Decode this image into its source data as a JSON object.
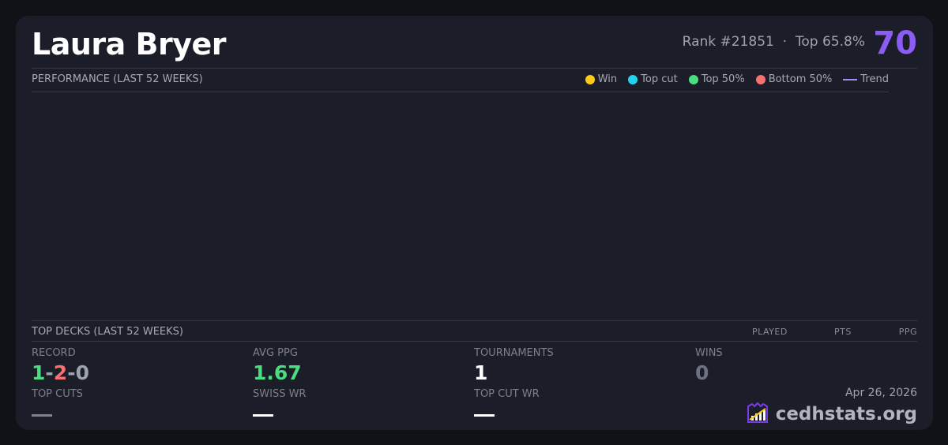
{
  "player": {
    "name": "Laura Bryer",
    "rank": "Rank #21851",
    "separator": "·",
    "top_percent": "Top 65.8%",
    "score": "70"
  },
  "performance": {
    "title": "PERFORMANCE (LAST 52 WEEKS)",
    "legend": [
      {
        "label": "Win",
        "color": "#facc15",
        "icon": "dot"
      },
      {
        "label": "Top cut",
        "color": "#22d3ee",
        "icon": "dot"
      },
      {
        "label": "Top 50%",
        "color": "#4ade80",
        "icon": "dot"
      },
      {
        "label": "Bottom 50%",
        "color": "#f87171",
        "icon": "dot"
      },
      {
        "label": "Trend",
        "color": "#a78bfa",
        "icon": "line"
      }
    ]
  },
  "top_decks": {
    "title": "TOP DECKS (LAST 52 WEEKS)",
    "columns": [
      "PLAYED",
      "PTS",
      "PPG"
    ]
  },
  "stats": {
    "record": {
      "label": "RECORD",
      "wins": "1",
      "losses": "2",
      "draws": "0",
      "sep": "-"
    },
    "avg_ppg": {
      "label": "AVG PPG",
      "value": "1.67"
    },
    "tournaments": {
      "label": "TOURNAMENTS",
      "value": "1"
    },
    "wins": {
      "label": "WINS",
      "value": "0"
    },
    "top_cuts": {
      "label": "TOP CUTS",
      "value": "—"
    },
    "swiss_wr": {
      "label": "SWISS WR",
      "value": "—"
    },
    "top_cut_wr": {
      "label": "TOP CUT WR",
      "value": "—"
    }
  },
  "footer": {
    "date": "Apr 26, 2026",
    "brand": "cedhstats.org"
  },
  "colors": {
    "accent": "#8b5cf6",
    "win": "#4ade80",
    "loss": "#f87171",
    "draw": "#9ca3af"
  }
}
